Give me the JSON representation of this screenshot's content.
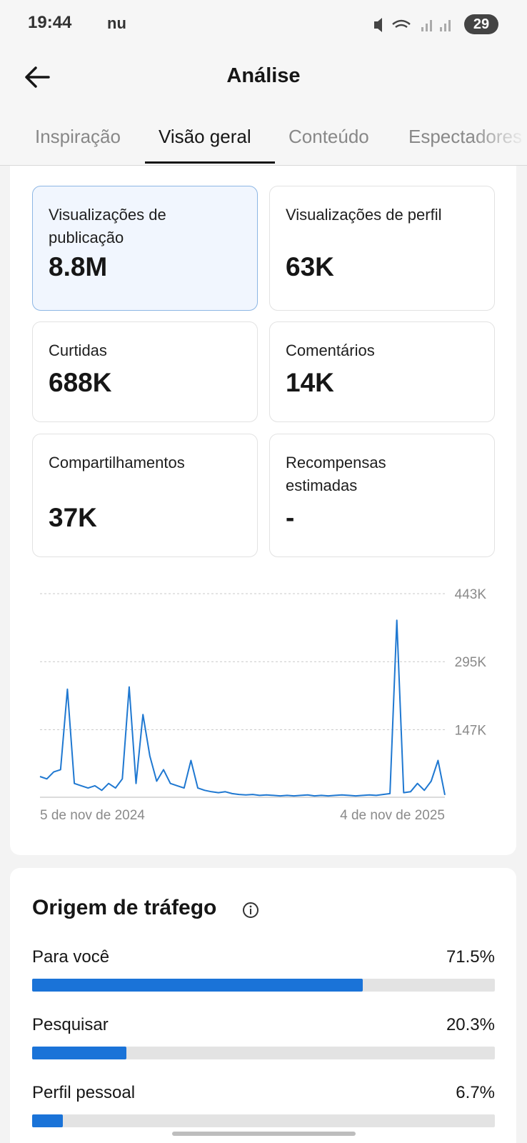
{
  "status_bar": {
    "time": "19:44",
    "carrier": "nu",
    "battery": "29"
  },
  "header": {
    "title": "Análise"
  },
  "tabs": [
    "Inspiração",
    "Visão geral",
    "Conteúdo",
    "Espectadores"
  ],
  "metrics": [
    {
      "label": "Visualizações de publicação",
      "value": "8.8M"
    },
    {
      "label": "Visualizações de perfil",
      "value": "63K"
    },
    {
      "label": "Curtidas",
      "value": "688K"
    },
    {
      "label": "Comentários",
      "value": "14K"
    },
    {
      "label": "Compartilhamentos",
      "value": "37K"
    },
    {
      "label": "Recompensas estimadas",
      "value": "-"
    }
  ],
  "chart_data": {
    "type": "line",
    "categories": [
      "5 de nov de 2024",
      null,
      null,
      null,
      null,
      null,
      null,
      null,
      null,
      null,
      null,
      null,
      null,
      null,
      null,
      null,
      null,
      null,
      null,
      null,
      null,
      null,
      null,
      null,
      null,
      null,
      null,
      null,
      null,
      null,
      null,
      null,
      null,
      null,
      null,
      null,
      null,
      null,
      null,
      null,
      null,
      null,
      null,
      null,
      null,
      null,
      null,
      null,
      null,
      null,
      null,
      null,
      null,
      null,
      null,
      null,
      null,
      null,
      null,
      "4 de nov de 2025"
    ],
    "values": [
      45000,
      40000,
      55000,
      60000,
      235000,
      30000,
      25000,
      20000,
      25000,
      15000,
      30000,
      20000,
      40000,
      240000,
      30000,
      180000,
      90000,
      35000,
      60000,
      30000,
      25000,
      20000,
      80000,
      20000,
      15000,
      12000,
      10000,
      12000,
      8000,
      6000,
      5000,
      6000,
      4000,
      5000,
      4000,
      3000,
      4000,
      3000,
      4000,
      5000,
      3000,
      4000,
      3000,
      4000,
      5000,
      4000,
      3000,
      4000,
      5000,
      4000,
      6000,
      8000,
      385000,
      10000,
      12000,
      30000,
      15000,
      35000,
      80000,
      5000
    ],
    "color": "#1f78d1",
    "ylim": [
      0,
      443000
    ],
    "yticks": [
      {
        "value": 147000,
        "label": "147K"
      },
      {
        "value": 295000,
        "label": "295K"
      },
      {
        "value": 443000,
        "label": "443K"
      }
    ],
    "grid": true
  },
  "traffic": {
    "title": "Origem de tráfego",
    "xlim": [
      0,
      100
    ],
    "color": "#1a73d8",
    "items": [
      {
        "name": "Para você",
        "value": 71.5,
        "label": "71.5%"
      },
      {
        "name": "Pesquisar",
        "value": 20.3,
        "label": "20.3%"
      },
      {
        "name": "Perfil pessoal",
        "value": 6.7,
        "label": "6.7%"
      }
    ]
  }
}
